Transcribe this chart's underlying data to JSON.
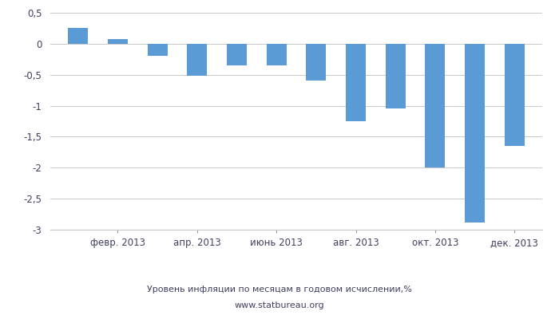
{
  "x_tick_labels": [
    "февр. 2013",
    "апр. 2013",
    "июнь 2013",
    "авг. 2013",
    "окт. 2013",
    "дек. 2013"
  ],
  "x_tick_positions": [
    1,
    3,
    5,
    7,
    9,
    11
  ],
  "values": [
    0.25,
    0.07,
    -0.2,
    -0.52,
    -0.35,
    -0.35,
    -0.6,
    -1.25,
    -1.05,
    -2.0,
    -2.88,
    -1.65
  ],
  "bar_color": "#5b9bd5",
  "ylim": [
    -3.0,
    0.5
  ],
  "yticks": [
    0.5,
    0,
    -0.5,
    -1,
    -1.5,
    -2,
    -2.5,
    -3
  ],
  "ytick_labels": [
    "0,5",
    "0",
    "-0,5",
    "-1",
    "-1,5",
    "-2",
    "-2,5",
    "-3"
  ],
  "grid_color": "#c8c8c8",
  "subtitle": "Уровень инфляции по месяцам в годовом исчислении,%",
  "source": "www.statbureau.org",
  "background_color": "#ffffff",
  "text_color": "#404060",
  "bar_width": 0.5
}
